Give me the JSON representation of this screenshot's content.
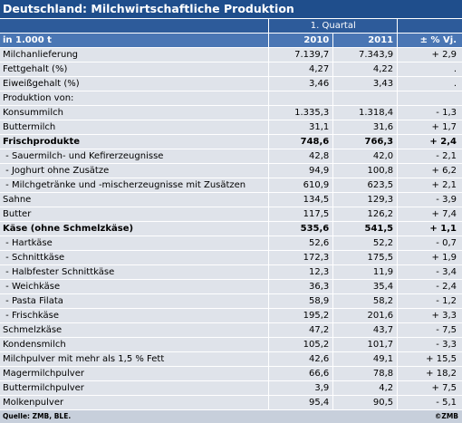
{
  "header": {
    "title": "Deutschland: Milchwirtschaftliche Produktion",
    "period": "1. Quartal",
    "unit": "in 1.000 t",
    "col_2010": "2010",
    "col_2011": "2011",
    "col_change": "± % Vj."
  },
  "table": {
    "rows": [
      {
        "cells": [
          "Milchanlieferung",
          "7.139,7",
          "7.343,9",
          "+ 2,9"
        ]
      },
      {
        "cells": [
          "Fettgehalt (%)",
          "4,27",
          "4,22",
          "."
        ]
      },
      {
        "cells": [
          "Eiweißgehalt (%)",
          "3,46",
          "3,43",
          "."
        ]
      },
      {
        "cells": [
          "Produktion von:",
          null,
          null,
          null
        ]
      },
      {
        "cells": [
          "Konsummilch",
          "1.335,3",
          "1.318,4",
          "- 1,3"
        ]
      },
      {
        "cells": [
          "Buttermilch",
          "31,1",
          "31,6",
          "+ 1,7"
        ]
      },
      {
        "cells": [
          "Frischprodukte",
          "748,6",
          "766,3",
          "+ 2,4"
        ],
        "bold": true
      },
      {
        "cells": [
          " - Sauermilch- und Kefirerzeugnisse",
          "42,8",
          "42,0",
          "- 2,1"
        ]
      },
      {
        "cells": [
          " - Joghurt ohne Zusätze",
          "94,9",
          "100,8",
          "+ 6,2"
        ]
      },
      {
        "cells": [
          " - Milchgetränke und -mischerzeugnisse mit Zusätzen",
          "610,9",
          "623,5",
          "+ 2,1"
        ]
      },
      {
        "cells": [
          "Sahne",
          "134,5",
          "129,3",
          "- 3,9"
        ]
      },
      {
        "cells": [
          "Butter",
          "117,5",
          "126,2",
          "+ 7,4"
        ]
      },
      {
        "cells": [
          "Käse (ohne Schmelzkäse)",
          "535,6",
          "541,5",
          "+ 1,1"
        ],
        "bold": true
      },
      {
        "cells": [
          " - Hartkäse",
          "52,6",
          "52,2",
          "- 0,7"
        ]
      },
      {
        "cells": [
          " - Schnittkäse",
          "172,3",
          "175,5",
          "+ 1,9"
        ]
      },
      {
        "cells": [
          " - Halbfester Schnittkäse",
          "12,3",
          "11,9",
          "- 3,4"
        ]
      },
      {
        "cells": [
          " - Weichkäse",
          "36,3",
          "35,4",
          "- 2,4"
        ]
      },
      {
        "cells": [
          " - Pasta Filata",
          "58,9",
          "58,2",
          "- 1,2"
        ]
      },
      {
        "cells": [
          " - Frischkäse",
          "195,2",
          "201,6",
          "+ 3,3"
        ]
      },
      {
        "cells": [
          "Schmelzkäse",
          "47,2",
          "43,7",
          "- 7,5"
        ]
      },
      {
        "cells": [
          "Kondensmilch",
          "105,2",
          "101,7",
          "- 3,3"
        ]
      },
      {
        "cells": [
          "Milchpulver mit mehr als 1,5 % Fett",
          "42,6",
          "49,1",
          "+ 15,5"
        ]
      },
      {
        "cells": [
          "Magermilchpulver",
          "66,6",
          "78,8",
          "+ 18,2"
        ]
      },
      {
        "cells": [
          "Buttermilchpulver",
          "3,9",
          "4,2",
          "+ 7,5"
        ]
      },
      {
        "cells": [
          "Molkenpulver",
          "95,4",
          "90,5",
          "- 5,1"
        ]
      }
    ]
  },
  "footer": {
    "source": "Quelle: ZMB, BLE.",
    "copyright": "©ZMB"
  }
}
